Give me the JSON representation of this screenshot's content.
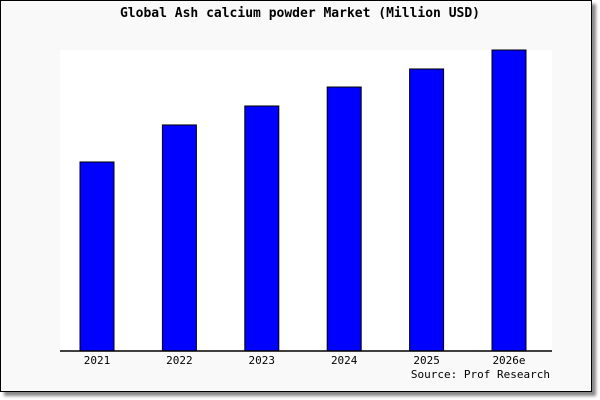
{
  "chart_data": {
    "type": "bar",
    "title": "Global Ash calcium powder Market (Million USD)",
    "categories": [
      "2021",
      "2022",
      "2023",
      "2024",
      "2025",
      "2026e"
    ],
    "values": [
      62.8,
      75.1,
      81.4,
      87.7,
      93.7,
      100
    ],
    "ylim": [
      0,
      100
    ],
    "xlabel": "",
    "ylabel": "",
    "grid": false,
    "bar_color": "#0000ff",
    "source": "Source: Prof Research"
  }
}
